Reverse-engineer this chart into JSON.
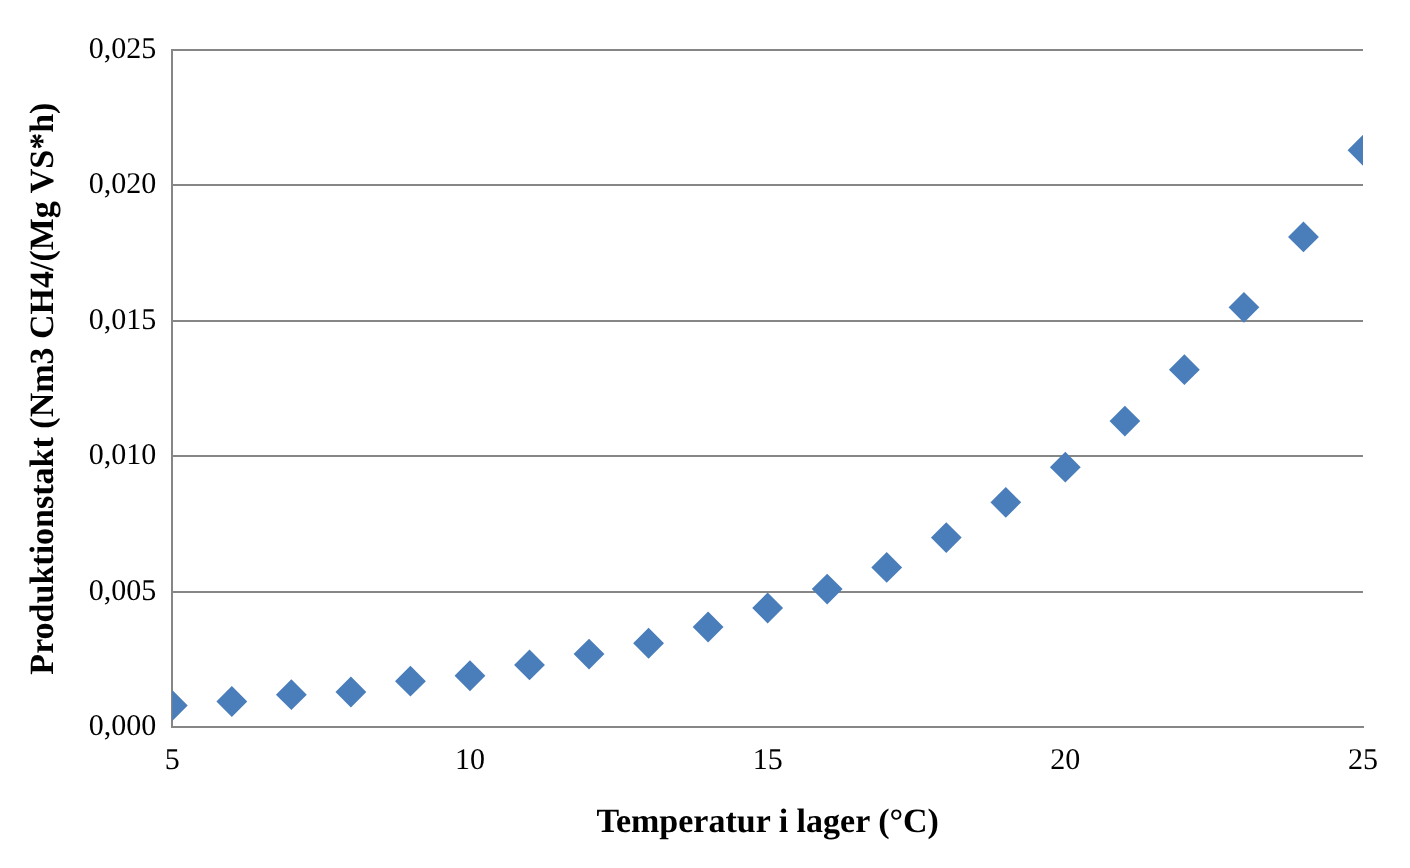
{
  "chart_data": {
    "type": "scatter",
    "xlabel": "Temperatur i lager (°C)",
    "ylabel": "Produktionstakt (Nm3 CH4/(Mg VS*h)",
    "x": [
      5,
      6,
      7,
      8,
      9,
      10,
      11,
      12,
      13,
      14,
      15,
      16,
      17,
      18,
      19,
      20,
      21,
      22,
      23,
      24,
      25
    ],
    "series": [
      {
        "color": "#4a7ebb",
        "values": [
          0.0008,
          0.00095,
          0.0012,
          0.0013,
          0.0017,
          0.0019,
          0.0023,
          0.0027,
          0.0031,
          0.0037,
          0.0044,
          0.0051,
          0.0059,
          0.007,
          0.0083,
          0.0096,
          0.0113,
          0.0132,
          0.0155,
          0.0181,
          0.0213
        ]
      }
    ],
    "xlim": [
      5,
      25
    ],
    "xticks": [
      5,
      10,
      15,
      20,
      25
    ],
    "ylim": [
      0,
      0.025
    ],
    "yticks": [
      {
        "value": 0,
        "label": "0,000"
      },
      {
        "value": 0.005,
        "label": "0,005"
      },
      {
        "value": 0.01,
        "label": "0,010"
      },
      {
        "value": 0.015,
        "label": "0,015"
      },
      {
        "value": 0.02,
        "label": "0,020"
      },
      {
        "value": 0.025,
        "label": "0,025"
      }
    ],
    "grid": "y",
    "marker": "diamond",
    "legend": false
  }
}
